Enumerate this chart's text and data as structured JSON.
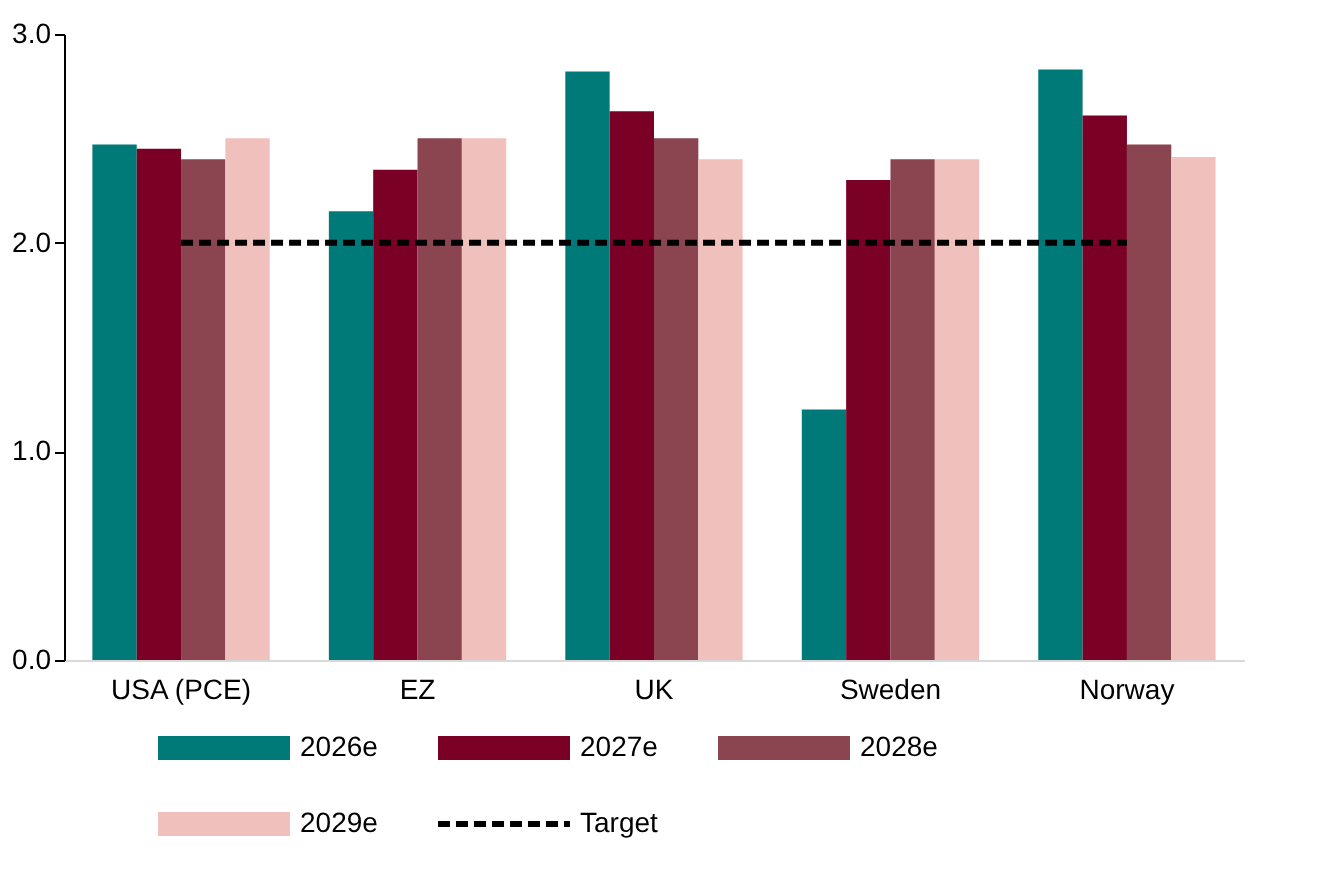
{
  "chart_data": {
    "type": "bar",
    "categories": [
      "USA (PCE)",
      "EZ",
      "UK",
      "Sweden",
      "Norway"
    ],
    "series": [
      {
        "name": "2026e",
        "color": "#007a78",
        "values": [
          2.47,
          2.15,
          2.82,
          1.2,
          2.83
        ]
      },
      {
        "name": "2027e",
        "color": "#7a0026",
        "values": [
          2.45,
          2.35,
          2.63,
          2.3,
          2.61
        ]
      },
      {
        "name": "2028e",
        "color": "#8b4550",
        "values": [
          2.4,
          2.5,
          2.5,
          2.4,
          2.47
        ]
      },
      {
        "name": "2029e",
        "color": "#f0c0bc",
        "values": [
          2.5,
          2.5,
          2.4,
          2.4,
          2.41
        ]
      },
      {
        "name": "Target",
        "type": "line",
        "color": "#000000",
        "line_style": "dashed",
        "marker": "none",
        "values": [
          2.0,
          2.0,
          2.0,
          2.0,
          2.0
        ]
      }
    ],
    "ylim": [
      0,
      3
    ],
    "yticks": [
      {
        "value": 0,
        "label": "0.0"
      },
      {
        "value": 1,
        "label": "1.0"
      },
      {
        "value": 2,
        "label": "2.0"
      },
      {
        "value": 3,
        "label": "3.0"
      }
    ],
    "grid": false,
    "legend": "bottom"
  }
}
